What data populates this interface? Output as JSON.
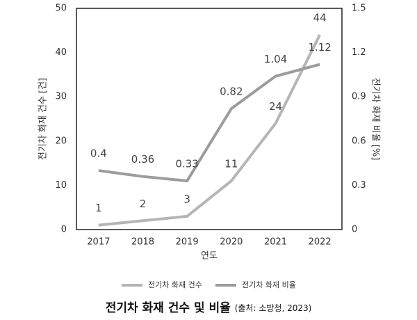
{
  "chart_data": {
    "type": "line",
    "title": "전기차 화재 건수 및 비율",
    "subtitle": "(출처: 소방청, 2023)",
    "x_label": "연도",
    "y_label": "전기차 화재 건수 [건]",
    "y2_label": "전기차 화재 비율 [%]",
    "categories": [
      "2017",
      "2018",
      "2019",
      "2020",
      "2021",
      "2022"
    ],
    "series": [
      {
        "name": "전기차 화재 건수",
        "color": "#b5b5b5",
        "values": [
          1,
          2,
          3,
          11,
          24,
          44
        ]
      },
      {
        "name": "전기차 화재 비율",
        "color": "#9c9c9c",
        "axis": "y2",
        "values": [
          0.4,
          0.36,
          0.33,
          0.82,
          1.04,
          1.12
        ]
      }
    ],
    "ylim": [
      0,
      50
    ],
    "yticks": [
      0,
      10,
      20,
      30,
      40,
      50
    ],
    "y2lim": [
      0,
      1.5
    ],
    "y2ticks": [
      0,
      0.3,
      0.6,
      0.9,
      1.2,
      1.5
    ],
    "grid": false,
    "legend": "bottom"
  }
}
